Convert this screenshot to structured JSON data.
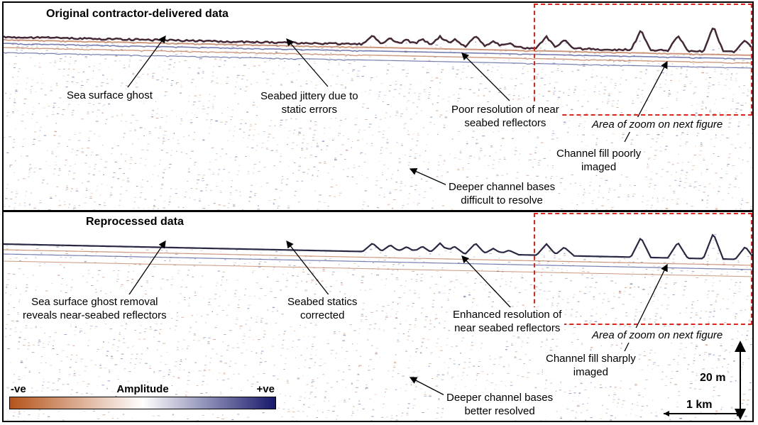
{
  "top_panel": {
    "title": "Original contractor-delivered data",
    "annotations": {
      "sea_surface_ghost": "Sea surface ghost",
      "seabed_jittery": "Seabed jittery due to\nstatic errors",
      "poor_resolution": "Poor resolution of near\nseabed reflectors",
      "area_of_zoom": "Area of zoom on next figure",
      "channel_fill": "Channel fill poorly\nimaged",
      "deeper_bases": "Deeper channel bases\ndifficult to resolve"
    }
  },
  "bottom_panel": {
    "title": "Reprocessed data",
    "annotations": {
      "ghost_removal": "Sea surface ghost removal\nreveals near-seabed reflectors",
      "statics_corrected": "Seabed statics\ncorrected",
      "enhanced_resolution": "Enhanced resolution of\nnear seabed reflectors",
      "area_of_zoom": "Area of zoom on next figure",
      "channel_fill": "Channel fill sharply\nimaged",
      "deeper_bases": "Deeper channel bases\nbetter resolved"
    }
  },
  "colorbar": {
    "title": "Amplitude",
    "neg_label": "-ve",
    "pos_label": "+ve",
    "colors": [
      "#b5541c",
      "#ffffff",
      "#17186b"
    ]
  },
  "scale": {
    "vertical": "20 m",
    "horizontal": "1 km"
  },
  "colors": {
    "zoom_box": "#e2231a",
    "seismic_positive": "#1c2a7a",
    "seismic_negative": "#a8552a"
  }
}
